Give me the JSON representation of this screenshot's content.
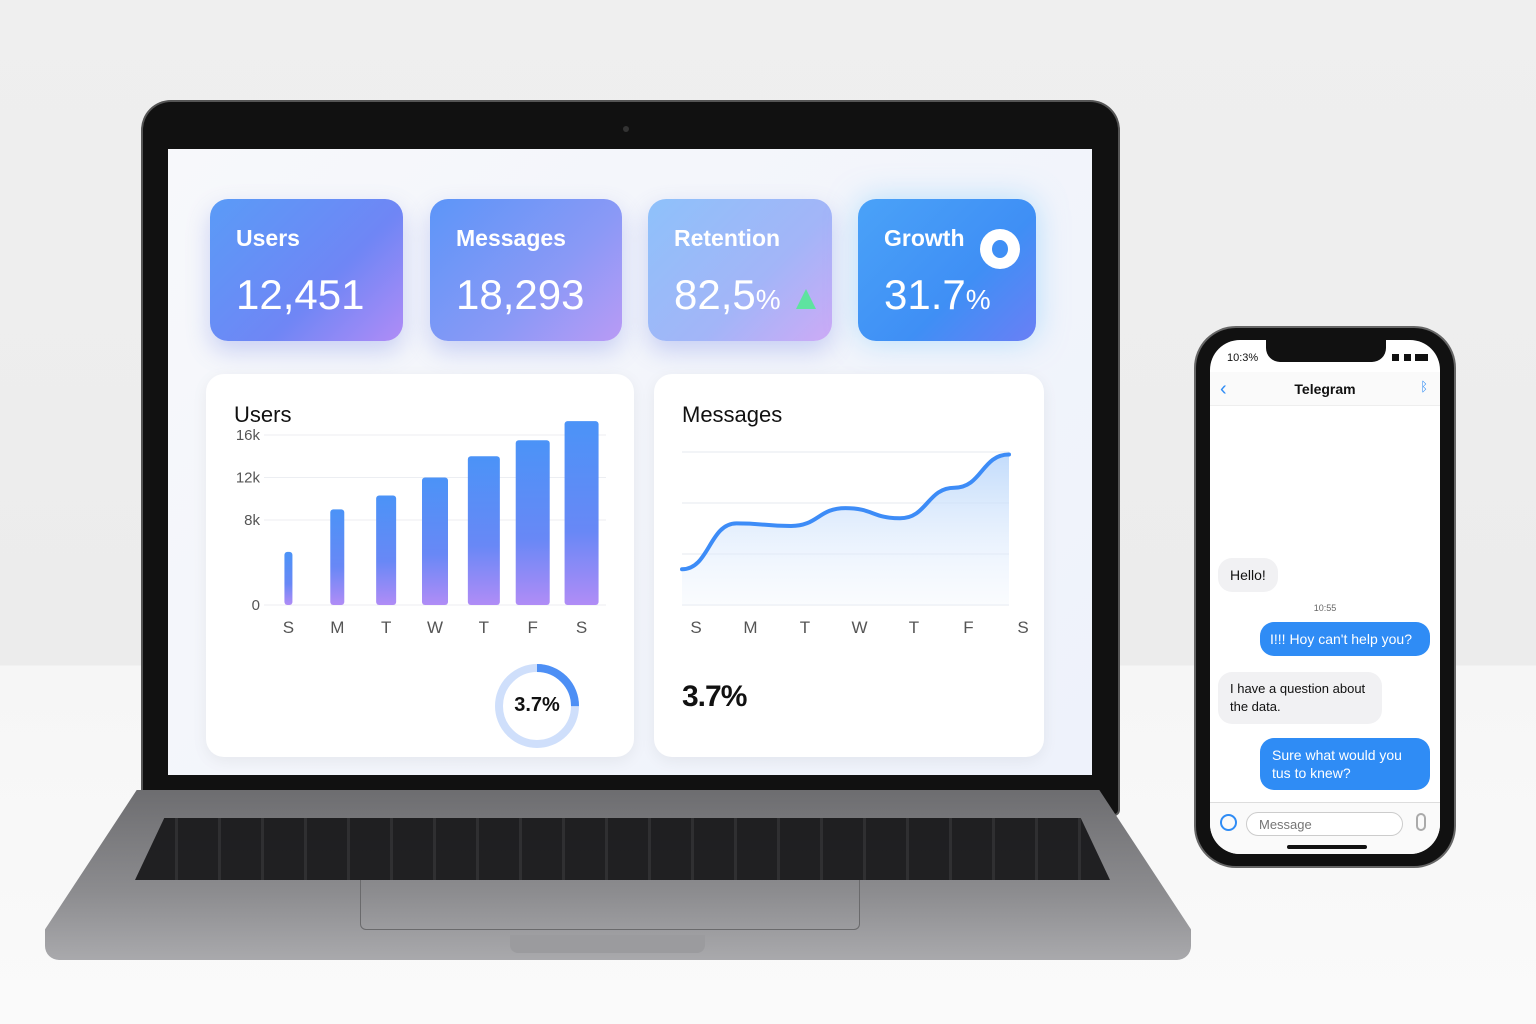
{
  "dashboard": {
    "cards": [
      {
        "label": "Users",
        "value": "12,451",
        "unit": ""
      },
      {
        "label": "Messages",
        "value": "18,293",
        "unit": ""
      },
      {
        "label": "Retention",
        "value": "82,5",
        "unit": "%",
        "trend": "up-triangle-icon"
      },
      {
        "label": "Growth",
        "value": "31.7",
        "unit": "%",
        "icon": "bot-avatar-icon"
      }
    ],
    "users_panel": {
      "title": "Users",
      "donut_label": "3.7%",
      "donut_fraction": 0.25
    },
    "messages_panel": {
      "title": "Messages",
      "stat": "3.7%"
    },
    "colors": {
      "accent": "#3d8cf7",
      "purple": "#b98cf7",
      "trend_green": "#5ee3a0"
    }
  },
  "chart_data": [
    {
      "type": "bar",
      "title": "Users",
      "categories": [
        "S",
        "M",
        "T",
        "W",
        "T",
        "F",
        "S"
      ],
      "values": [
        5000,
        9000,
        10300,
        12000,
        14000,
        15500,
        17300
      ],
      "yticks": [
        "0",
        "8k",
        "12k",
        "16k"
      ],
      "ytick_values": [
        0,
        8000,
        12000,
        16000
      ],
      "ylim": [
        0,
        17500
      ],
      "grid": true
    },
    {
      "type": "area",
      "title": "Messages",
      "categories": [
        "S",
        "M",
        "T",
        "W",
        "T",
        "F",
        "S"
      ],
      "values": [
        0.7,
        1.6,
        1.55,
        1.9,
        1.7,
        2.3,
        2.95
      ],
      "ylim": [
        0,
        3
      ],
      "grid": true
    }
  ],
  "phone": {
    "time": "10:3%",
    "title": "Telegram",
    "messages": [
      {
        "dir": "in",
        "text": "Hello!"
      },
      {
        "dir": "out",
        "text": "I!!! Hoy can't help you?"
      },
      {
        "dir": "in",
        "text": "I have a question about the data."
      },
      {
        "dir": "out",
        "text": "Sure what would you tus to knew?"
      }
    ],
    "timestamp": "10:55",
    "input_placeholder": "Message"
  }
}
